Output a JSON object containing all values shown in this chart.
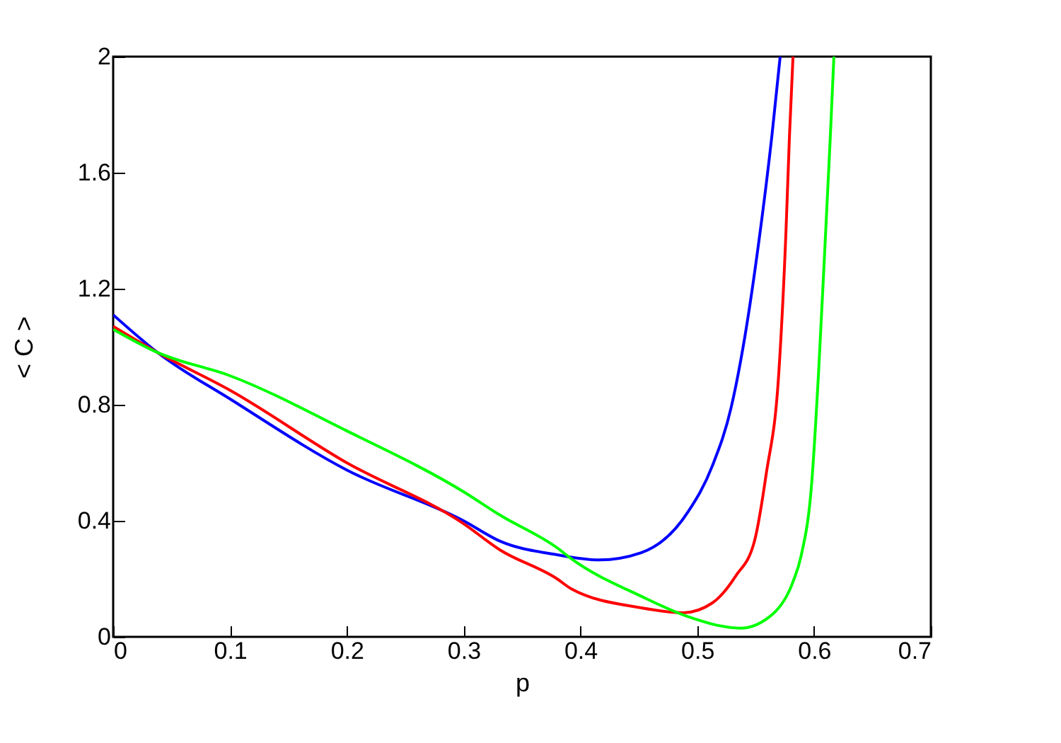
{
  "chart_data": {
    "type": "line",
    "xlabel": "p",
    "ylabel": "< C >",
    "xlim": [
      0,
      0.7
    ],
    "xticks": [
      0,
      0.1,
      0.2,
      0.3,
      0.4,
      0.5,
      0.6,
      0.7
    ],
    "ylim": [
      0,
      2
    ],
    "yticks": [
      0,
      0.4,
      0.8,
      1.2,
      1.6,
      2
    ],
    "grid": false,
    "series": [
      {
        "color": "#0000ff",
        "x": [
          0,
          0.038,
          0.1,
          0.2,
          0.3,
          0.331,
          0.38,
          0.416,
          0.452,
          0.492,
          0.513,
          0.529,
          0.541,
          0.553,
          0.564,
          0.571
        ],
        "values": [
          1.11,
          0.98,
          0.82,
          0.575,
          0.4,
          0.33,
          0.283,
          0.265,
          0.29,
          0.43,
          0.59,
          0.79,
          1.04,
          1.37,
          1.73,
          2.0
        ]
      },
      {
        "color": "#ff0000",
        "x": [
          0,
          0.038,
          0.1,
          0.2,
          0.3,
          0.331,
          0.38,
          0.392,
          0.452,
          0.488,
          0.513,
          0.533,
          0.549,
          0.559,
          0.57,
          0.576,
          0.579,
          0.582
        ],
        "values": [
          1.07,
          0.98,
          0.85,
          0.6,
          0.39,
          0.3,
          0.2,
          0.166,
          0.1,
          0.083,
          0.117,
          0.21,
          0.33,
          0.56,
          0.92,
          1.4,
          1.73,
          2.0
        ]
      },
      {
        "color": "#00ff00",
        "x": [
          0,
          0.038,
          0.1,
          0.2,
          0.3,
          0.331,
          0.38,
          0.392,
          0.452,
          0.492,
          0.537,
          0.565,
          0.582,
          0.589,
          0.598,
          0.604,
          0.61,
          0.614,
          0.617
        ],
        "values": [
          1.06,
          0.98,
          0.9,
          0.71,
          0.5,
          0.42,
          0.307,
          0.27,
          0.14,
          0.07,
          0.03,
          0.08,
          0.19,
          0.28,
          0.53,
          0.92,
          1.4,
          1.73,
          2.0
        ]
      }
    ]
  }
}
